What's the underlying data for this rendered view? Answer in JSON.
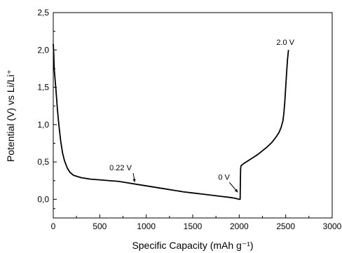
{
  "chart_data": {
    "type": "line",
    "title": "",
    "xlabel": "Specific Capacity (mAh g⁻¹)",
    "ylabel": "Potential (V) vs Li/Li⁺",
    "xlim": [
      0,
      3000
    ],
    "ylim": [
      -0.25,
      2.5
    ],
    "xticks": [
      0,
      500,
      1000,
      1500,
      2000,
      2500,
      3000
    ],
    "yticks": [
      0.0,
      0.5,
      1.0,
      1.5,
      2.0,
      2.5
    ],
    "xtick_labels": [
      "0",
      "500",
      "1000",
      "1500",
      "2000",
      "2500",
      "3000"
    ],
    "ytick_labels": [
      "0,0",
      "0,5",
      "1,0",
      "1,5",
      "2,0",
      "2,5"
    ],
    "grid": false,
    "legend": "none",
    "color": "#000000",
    "series": [
      {
        "x": [
          0,
          5,
          10,
          20,
          30,
          45,
          60,
          80,
          100,
          120,
          150,
          180,
          220,
          300,
          400,
          500,
          600,
          700,
          800,
          900,
          1000,
          1100,
          1200,
          1300,
          1400,
          1500,
          1600,
          1700,
          1800,
          1900,
          1950,
          2000,
          2010,
          2012,
          2015,
          2017,
          2020,
          2050,
          2100,
          2150,
          2200,
          2250,
          2300,
          2350,
          2400,
          2430,
          2450,
          2470,
          2480,
          2490,
          2500,
          2510,
          2520,
          2530
        ],
        "y": [
          2.08,
          1.95,
          1.75,
          1.6,
          1.45,
          1.2,
          1.0,
          0.78,
          0.62,
          0.52,
          0.42,
          0.36,
          0.32,
          0.29,
          0.27,
          0.26,
          0.25,
          0.24,
          0.22,
          0.2,
          0.18,
          0.16,
          0.14,
          0.12,
          0.1,
          0.085,
          0.07,
          0.055,
          0.04,
          0.025,
          0.015,
          0.0,
          0.0,
          0.2,
          0.4,
          0.43,
          0.45,
          0.48,
          0.52,
          0.56,
          0.6,
          0.65,
          0.7,
          0.76,
          0.84,
          0.9,
          0.96,
          1.05,
          1.15,
          1.3,
          1.5,
          1.7,
          1.88,
          2.0
        ]
      }
    ],
    "annotations": [
      {
        "text": "2.0 V",
        "x": 2520,
        "y": 2.05
      },
      {
        "text": "0.22 V",
        "x": 800,
        "y": 0.22
      },
      {
        "text": "0 V",
        "x": 2000,
        "y": 0.0
      }
    ]
  }
}
